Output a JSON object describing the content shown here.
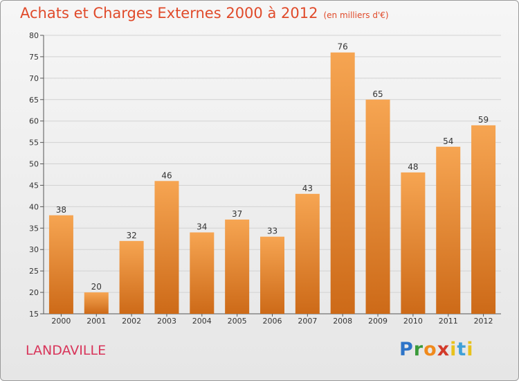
{
  "header": {
    "title": "Achats et Charges Externes 2000 à 2012",
    "subtitle": "(en milliers d'€)"
  },
  "footer": {
    "city": "LANDAVILLE",
    "logo": {
      "p": "P",
      "r": "r",
      "o": "o",
      "x": "x",
      "i": "i",
      "t": "t",
      "i2": "i"
    }
  },
  "colors": {
    "bar_top": "#f6a552",
    "bar_bottom": "#cd6a18",
    "title": "#e04a2a",
    "city": "#d8355a"
  },
  "chart_data": {
    "type": "bar",
    "title": "Achats et Charges Externes 2000 à 2012",
    "subtitle": "(en milliers d'€)",
    "xlabel": "",
    "ylabel": "",
    "ylim": [
      15,
      80
    ],
    "yticks": [
      15,
      20,
      25,
      30,
      35,
      40,
      45,
      50,
      55,
      60,
      65,
      70,
      75,
      80
    ],
    "grid": true,
    "categories": [
      "2000",
      "2001",
      "2002",
      "2003",
      "2004",
      "2005",
      "2006",
      "2007",
      "2008",
      "2009",
      "2010",
      "2011",
      "2012"
    ],
    "values": [
      38,
      20,
      32,
      46,
      34,
      37,
      33,
      43,
      76,
      65,
      48,
      54,
      59
    ]
  }
}
